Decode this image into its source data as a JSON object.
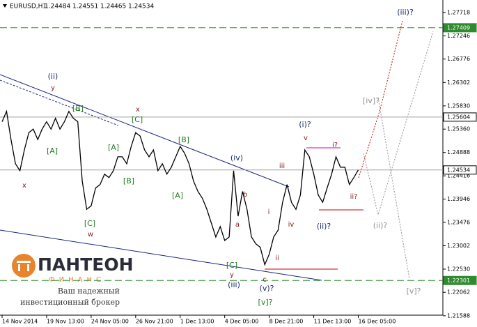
{
  "chart_data": {
    "type": "line",
    "title": "EURUSD,H1",
    "ohlc": [
      1.24484,
      1.24551,
      1.24465,
      1.24534
    ],
    "categories": [
      "14 Nov 2014",
      null,
      null,
      null,
      null,
      null,
      null,
      null,
      null,
      null,
      "19 Nov 13:00",
      null,
      null,
      null,
      null,
      null,
      null,
      null,
      null,
      null,
      "24 Nov 05:00",
      null,
      null,
      null,
      null,
      null,
      null,
      null,
      null,
      null,
      "26 Nov 21:00",
      null,
      null,
      null,
      null,
      null,
      null,
      null,
      null,
      null,
      "1 Dec 13:00",
      null,
      null,
      null,
      null,
      null,
      null,
      null,
      null,
      null,
      "4 Dec 05:00",
      null,
      null,
      null,
      null,
      null,
      null,
      null,
      null,
      null,
      "8 Dec 21:00",
      null,
      null,
      null,
      null,
      null,
      null,
      null,
      null,
      null,
      "11 Dec 13:00",
      null,
      null,
      null,
      null,
      null,
      null,
      null,
      null,
      null,
      "16 Dec 05:00",
      null,
      null,
      null,
      null,
      null,
      null,
      null,
      null,
      null,
      null,
      null,
      null,
      null,
      null,
      null,
      null,
      null,
      null,
      null
    ],
    "series": [
      {
        "color": "#000000",
        "values": [
          1.2551,
          1.2572,
          1.2515,
          1.2466,
          1.2452,
          1.2494,
          1.2529,
          1.2536,
          1.2515,
          1.2536,
          1.2551,
          1.2536,
          1.2558,
          1.2536,
          1.2551,
          1.2572,
          1.2558,
          1.2551,
          1.2431,
          1.2374,
          1.2381,
          1.2417,
          1.2424,
          1.2445,
          1.2438,
          1.2452,
          1.248,
          1.248,
          1.2466,
          1.2501,
          1.2529,
          1.2522,
          1.2494,
          1.248,
          1.2494,
          1.2452,
          1.2466,
          1.2445,
          1.2459,
          1.248,
          1.2501,
          1.2487,
          1.2466,
          1.2431,
          1.241,
          1.2396,
          1.2374,
          1.2346,
          1.2318,
          1.2339,
          1.2311,
          1.2318,
          1.2452,
          1.236,
          1.241,
          1.2374,
          1.2318,
          1.2304,
          1.2297,
          1.2262,
          1.2283,
          1.2318,
          1.2332,
          1.2388,
          1.2424,
          1.2388,
          1.2374,
          1.2403,
          1.2494,
          1.248,
          1.2445,
          1.2403,
          1.2388,
          1.2417,
          1.2445,
          1.248,
          1.2459,
          1.2459,
          1.2424,
          1.2438,
          1.24534,
          null,
          null,
          null,
          null,
          null,
          null,
          null,
          null,
          null,
          null,
          null,
          null,
          null,
          null,
          null,
          null,
          null,
          null,
          null
        ]
      }
    ],
    "ylim": [
      1.216,
      1.2797
    ],
    "yticks": [
      1.27718,
      1.27246,
      1.26776,
      1.26302,
      {
        "value": 1.2583,
        "label": "1.25830"
      },
      {
        "value": 1.2536,
        "label": "1.25360"
      },
      1.24888,
      1.24416,
      1.23946,
      1.23476,
      1.23002,
      {
        "value": 1.2253,
        "label": "1.22530"
      },
      1.22062,
      1.21588
    ],
    "levels": [
      {
        "value": 1.27409,
        "color": "#2e8b2e",
        "style": "dashed"
      },
      {
        "value": 1.25604,
        "color": "#a0a0a0",
        "style": "solid"
      },
      {
        "value": 1.24534,
        "color": "#a0a0a0",
        "style": "solid"
      },
      {
        "value": 1.22301,
        "color": "#2e8b2e",
        "style": "dashed"
      }
    ],
    "annotations": [
      {
        "text": "(ii)",
        "color": "#1a2a6c"
      },
      {
        "text": "y",
        "color": "#8b1a1a"
      },
      {
        "text": "[B]",
        "color": "#1f7a1f"
      },
      {
        "text": "x",
        "color": "#8b1a1a"
      },
      {
        "text": "[C]",
        "color": "#1f7a1f"
      },
      {
        "text": "[A]",
        "color": "#1f7a1f"
      },
      {
        "text": "[A]",
        "color": "#1f7a1f"
      },
      {
        "text": "[B]",
        "color": "#1f7a1f"
      },
      {
        "text": "[B]",
        "color": "#1f7a1f"
      },
      {
        "text": "x",
        "color": "#8b1a1a"
      },
      {
        "text": "[C]",
        "color": "#1f7a1f"
      },
      {
        "text": "w",
        "color": "#8b1a1a"
      },
      {
        "text": "[A]",
        "color": "#1f7a1f"
      },
      {
        "text": "(iv)",
        "color": "#1a2a6c"
      },
      {
        "text": "iii",
        "color": "#8b1a1a"
      },
      {
        "text": "b",
        "color": "#8b1a1a"
      },
      {
        "text": "a",
        "color": "#8b1a1a"
      },
      {
        "text": "i",
        "color": "#8b1a1a"
      },
      {
        "text": "iv",
        "color": "#8b1a1a"
      },
      {
        "text": "[C]",
        "color": "#1f7a1f"
      },
      {
        "text": "y",
        "color": "#8b1a1a"
      },
      {
        "text": "(iii)",
        "color": "#1a2a6c"
      },
      {
        "text": "c",
        "color": "#8b1a1a"
      },
      {
        "text": "ii",
        "color": "#8b1a1a"
      },
      {
        "text": "(v)?",
        "color": "#1a2a6c"
      },
      {
        "text": "[v]?",
        "color": "#1f7a1f"
      },
      {
        "text": "(i)?",
        "color": "#1a2a6c"
      },
      {
        "text": "v",
        "color": "#8b1a1a"
      },
      {
        "text": "i?",
        "color": "#8b1a1a"
      },
      {
        "text": "(ii)?",
        "color": "#1a2a6c"
      },
      {
        "text": "ii?",
        "color": "#8b1a1a"
      },
      {
        "text": "(iii)?",
        "color": "#1a2a6c"
      },
      {
        "text": "[iv]?",
        "color": "#909090"
      },
      {
        "text": "(ii)?",
        "color": "#909090"
      },
      {
        "text": "[v]?",
        "color": "#909090"
      }
    ]
  },
  "logo": {
    "name": "ПАНТЕОН",
    "sub": "ФИНАНС",
    "line1": "Ваш надежный",
    "line2": "инвестиционный брокер"
  }
}
